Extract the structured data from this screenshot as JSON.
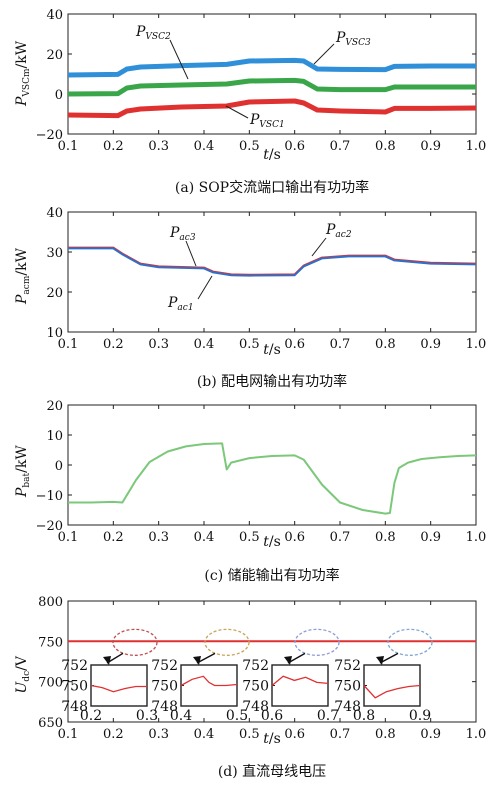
{
  "chart_data": [
    {
      "type": "line",
      "caption": "(a) SOP交流端口输出有功功率",
      "ylabel": {
        "main": "P",
        "sub": "VSCm",
        "unit": "/kW"
      },
      "xlabel": {
        "main": "t",
        "unit": "/s"
      },
      "xlim": [
        0.1,
        1.0
      ],
      "ylim": [
        -20,
        40
      ],
      "x_ticks": [
        "0.1",
        "0.2",
        "0.3",
        "0.4",
        "0.5",
        "0.6",
        "0.7",
        "0.8",
        "0.9",
        "1.0"
      ],
      "y_ticks": [
        "−20",
        "0",
        "20",
        "40"
      ],
      "series": [
        {
          "name_main": "P",
          "name_sub": "VSC3",
          "color": "#2f8fd8",
          "x": [
            0.1,
            0.21,
            0.23,
            0.26,
            0.35,
            0.45,
            0.5,
            0.6,
            0.62,
            0.65,
            0.7,
            0.8,
            0.82,
            0.9,
            1.0
          ],
          "y": [
            9.5,
            9.8,
            12.5,
            13.5,
            14.2,
            14.8,
            16.5,
            16.8,
            16.5,
            12.5,
            12.3,
            12.2,
            13.8,
            14.0,
            14.0
          ]
        },
        {
          "name_main": "P",
          "name_sub": "VSC2",
          "color": "#3aa64a",
          "x": [
            0.1,
            0.21,
            0.23,
            0.26,
            0.35,
            0.45,
            0.5,
            0.6,
            0.62,
            0.65,
            0.7,
            0.8,
            0.82,
            0.9,
            1.0
          ],
          "y": [
            0,
            0.2,
            3.0,
            4.0,
            4.5,
            5.0,
            6.5,
            6.8,
            6.3,
            2.5,
            2.2,
            2.2,
            3.5,
            3.5,
            3.5
          ]
        },
        {
          "name_main": "P",
          "name_sub": "VSC1",
          "color": "#e03131",
          "x": [
            0.1,
            0.21,
            0.23,
            0.26,
            0.35,
            0.45,
            0.5,
            0.6,
            0.62,
            0.65,
            0.7,
            0.8,
            0.82,
            0.9,
            1.0
          ],
          "y": [
            -10.5,
            -10.8,
            -8.5,
            -7.5,
            -6.5,
            -6.0,
            -4.0,
            -3.5,
            -4.5,
            -8.0,
            -8.5,
            -9.0,
            -7.2,
            -7.2,
            -7.0
          ]
        }
      ]
    },
    {
      "type": "line",
      "caption": "(b) 配电网输出有功功率",
      "ylabel": {
        "main": "P",
        "sub": "acm",
        "unit": "/kW"
      },
      "xlabel": {
        "main": "t",
        "unit": "/s"
      },
      "xlim": [
        0.1,
        1.0
      ],
      "ylim": [
        10,
        40
      ],
      "x_ticks": [
        "0.1",
        "0.2",
        "0.3",
        "0.4",
        "0.5",
        "0.6",
        "0.7",
        "0.8",
        "0.9",
        "1.0"
      ],
      "y_ticks": [
        "10",
        "20",
        "30",
        "40"
      ],
      "series": [
        {
          "name_main": "P",
          "name_sub": "ac1",
          "color": "#3aa64a",
          "x": [
            0.1,
            0.2,
            0.22,
            0.26,
            0.3,
            0.4,
            0.42,
            0.46,
            0.5,
            0.6,
            0.62,
            0.66,
            0.72,
            0.8,
            0.82,
            0.9,
            1.0
          ],
          "y": [
            31,
            31,
            29.5,
            27,
            26.3,
            26,
            25,
            24.3,
            24.2,
            24.3,
            26.5,
            28.5,
            29,
            29,
            28,
            27.2,
            27
          ]
        },
        {
          "name_main": "P",
          "name_sub": "ac2",
          "color": "#e03131",
          "x": [
            0.1,
            0.2,
            0.22,
            0.26,
            0.3,
            0.4,
            0.42,
            0.46,
            0.5,
            0.6,
            0.62,
            0.66,
            0.72,
            0.8,
            0.82,
            0.9,
            1.0
          ],
          "y": [
            31.1,
            31.1,
            29.6,
            27.1,
            26.4,
            26.1,
            25.1,
            24.4,
            24.3,
            24.4,
            26.6,
            28.6,
            29.1,
            29.1,
            28.1,
            27.3,
            27.1
          ]
        },
        {
          "name_main": "P",
          "name_sub": "ac3",
          "color": "#2f6fc8",
          "x": [
            0.1,
            0.2,
            0.22,
            0.26,
            0.3,
            0.4,
            0.42,
            0.46,
            0.5,
            0.6,
            0.62,
            0.66,
            0.72,
            0.8,
            0.82,
            0.9,
            1.0
          ],
          "y": [
            30.9,
            30.9,
            29.4,
            26.9,
            26.2,
            25.9,
            24.9,
            24.2,
            24.1,
            24.2,
            26.4,
            28.4,
            28.9,
            28.9,
            27.9,
            27.1,
            26.9
          ]
        }
      ]
    },
    {
      "type": "line",
      "caption": "(c) 储能输出有功功率",
      "ylabel": {
        "main": "P",
        "sub": "bat",
        "unit": "/kW"
      },
      "xlabel": {
        "main": "t",
        "unit": "/s"
      },
      "xlim": [
        0.1,
        1.0
      ],
      "ylim": [
        -20,
        20
      ],
      "x_ticks": [
        "0.1",
        "0.2",
        "0.3",
        "0.4",
        "0.5",
        "0.6",
        "0.7",
        "0.8",
        "0.9",
        "1.0"
      ],
      "y_ticks": [
        "−20",
        "−10",
        "0",
        "10",
        "20"
      ],
      "series": [
        {
          "color": "#7cc87a",
          "x": [
            0.1,
            0.15,
            0.2,
            0.22,
            0.25,
            0.28,
            0.32,
            0.36,
            0.4,
            0.44,
            0.45,
            0.46,
            0.5,
            0.55,
            0.6,
            0.62,
            0.66,
            0.7,
            0.75,
            0.8,
            0.81,
            0.82,
            0.83,
            0.85,
            0.88,
            0.92,
            0.96,
            1.0
          ],
          "y": [
            -12.5,
            -12.5,
            -12.3,
            -12.5,
            -5,
            1,
            4.5,
            6.2,
            7,
            7.2,
            -1.5,
            0.8,
            2.3,
            3,
            3.2,
            1.8,
            -6.5,
            -12.5,
            -15,
            -16.2,
            -16,
            -6,
            -1,
            0.8,
            2,
            2.6,
            3,
            3.2
          ]
        }
      ]
    },
    {
      "type": "line",
      "caption": "(d) 直流母线电压",
      "ylabel": {
        "main": "U",
        "sub": "dc",
        "unit": "/V"
      },
      "xlabel": {
        "main": "t",
        "unit": "/s"
      },
      "xlim": [
        0.1,
        1.0
      ],
      "ylim": [
        650,
        800
      ],
      "x_ticks": [
        "0.1",
        "0.2",
        "0.3",
        "0.4",
        "0.5",
        "0.6",
        "0.7",
        "0.8",
        "0.9",
        "1.0"
      ],
      "y_ticks": [
        "650",
        "700",
        "750",
        "800"
      ],
      "series": [
        {
          "color": "#e03131",
          "x": [
            0.1,
            1.0
          ],
          "y": [
            750,
            750
          ]
        }
      ],
      "insets": [
        {
          "xlim": [
            0.2,
            0.3
          ],
          "x_ticks": [
            "0.2",
            "0.3"
          ],
          "y_ticks": [
            "752",
            "750",
            "748"
          ],
          "ellipse_color": "#c0504d",
          "x": [
            0.2,
            0.22,
            0.24,
            0.26,
            0.28,
            0.3
          ],
          "y": [
            750,
            749.8,
            749.4,
            749.7,
            749.9,
            749.9
          ]
        },
        {
          "xlim": [
            0.4,
            0.5
          ],
          "x_ticks": [
            "0.4",
            "0.5"
          ],
          "y_ticks": [
            "752",
            "750",
            "748"
          ],
          "ellipse_color": "#c9a35a",
          "x": [
            0.4,
            0.42,
            0.44,
            0.45,
            0.46,
            0.48,
            0.5
          ],
          "y": [
            750,
            750.6,
            750.9,
            750.3,
            750.0,
            750.0,
            750.1
          ]
        },
        {
          "xlim": [
            0.6,
            0.7
          ],
          "x_ticks": [
            "0.6",
            "0.7"
          ],
          "y_ticks": [
            "752",
            "750",
            "748"
          ],
          "ellipse_color": "#8f9bd8",
          "x": [
            0.6,
            0.62,
            0.64,
            0.66,
            0.68,
            0.7
          ],
          "y": [
            750,
            750.9,
            750.5,
            750.8,
            750.3,
            750.2
          ]
        },
        {
          "xlim": [
            0.8,
            0.9
          ],
          "x_ticks": [
            "0.8",
            "0.9"
          ],
          "y_ticks": [
            "752",
            "750",
            "748"
          ],
          "ellipse_color": "#7fa6d8",
          "x": [
            0.8,
            0.82,
            0.84,
            0.86,
            0.88,
            0.9
          ],
          "y": [
            750,
            748.8,
            749.4,
            749.7,
            749.9,
            750.0
          ]
        }
      ]
    }
  ]
}
